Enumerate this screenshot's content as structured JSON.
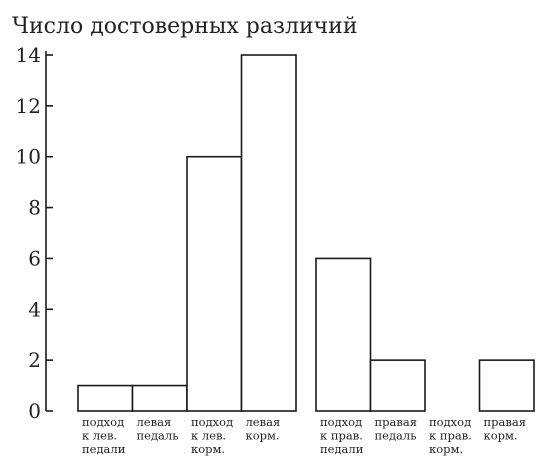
{
  "chart_data": {
    "type": "bar",
    "title": "Число достоверных различий",
    "ylim": [
      0,
      14
    ],
    "yticks": [
      0,
      2,
      4,
      6,
      8,
      10,
      12,
      14
    ],
    "grid": false,
    "groups": [
      {
        "categories": [
          [
            "подход",
            "к лев.",
            "педали"
          ],
          [
            "левая",
            "педаль"
          ],
          [
            "подход",
            "к лев.",
            "корм."
          ],
          [
            "левая",
            "корм."
          ]
        ],
        "values": [
          1,
          1,
          10,
          14
        ]
      },
      {
        "categories": [
          [
            "подход",
            "к прав.",
            "педали"
          ],
          [
            "правая",
            "педаль"
          ],
          [
            "подход",
            "к прав.",
            "корм."
          ],
          [
            "правая",
            "корм."
          ]
        ],
        "values": [
          6,
          2,
          0,
          2
        ]
      }
    ]
  }
}
